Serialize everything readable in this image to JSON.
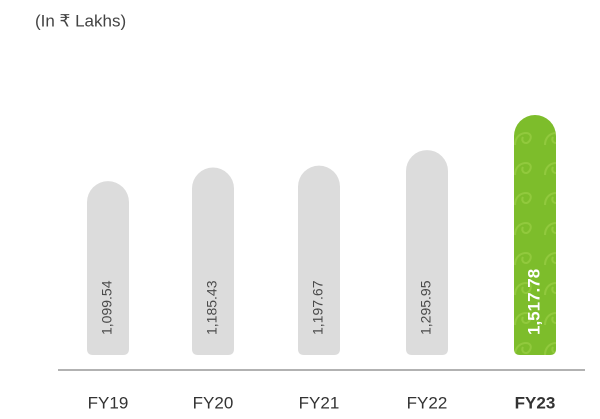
{
  "chart_data": {
    "type": "bar",
    "subtitle": "(In ₹ Lakhs)",
    "categories": [
      "FY19",
      "FY20",
      "FY21",
      "FY22",
      "FY23"
    ],
    "values": [
      1099.54,
      1185.43,
      1197.67,
      1295.95,
      1517.78
    ],
    "value_labels": [
      "1,099.54",
      "1,185.43",
      "1,197.67",
      "1,295.95",
      "1,517.78"
    ],
    "colors": [
      "#dcdcdc",
      "#dcdcdc",
      "#dcdcdc",
      "#dcdcdc",
      "#7dbd2b"
    ],
    "label_colors": [
      "#4a4a4a",
      "#4a4a4a",
      "#4a4a4a",
      "#4a4a4a",
      "#ffffff"
    ],
    "bold": [
      false,
      false,
      false,
      false,
      true
    ],
    "ylim": [
      0,
      1600
    ]
  }
}
